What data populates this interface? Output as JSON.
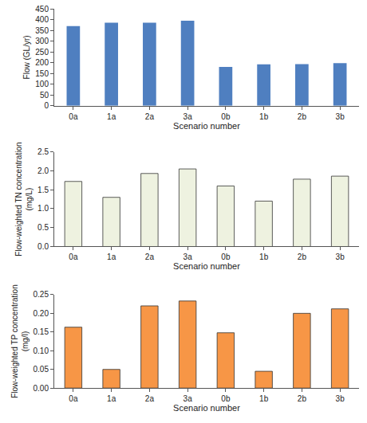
{
  "chart_data": [
    {
      "type": "bar",
      "x_label": "Scenario number",
      "y_label": "Flow (GL/yr)",
      "categories": [
        "0a",
        "1a",
        "2a",
        "3a",
        "0b",
        "1b",
        "2b",
        "3b"
      ],
      "values": [
        370,
        385,
        385,
        395,
        180,
        192,
        193,
        198
      ],
      "color": "#4f7fc0",
      "ylim": [
        0,
        450
      ],
      "yticks": [
        0,
        50,
        100,
        150,
        200,
        250,
        300,
        350,
        400,
        450
      ],
      "grid": false
    },
    {
      "type": "bar",
      "x_label": "Scenario number",
      "y_label": "Flow-weighted TN concentration\n(mg/L)",
      "categories": [
        "0a",
        "1a",
        "2a",
        "3a",
        "0b",
        "1b",
        "2b",
        "3b"
      ],
      "values": [
        1.72,
        1.3,
        1.93,
        2.05,
        1.6,
        1.2,
        1.78,
        1.86
      ],
      "color": "#eef2e0",
      "ylim": [
        0,
        2.5
      ],
      "yticks": [
        {
          "value": 0,
          "label": "0.0"
        },
        {
          "value": 0.5,
          "label": "0.5"
        },
        {
          "value": 1,
          "label": "1.0"
        },
        {
          "value": 1.5,
          "label": "1.5"
        },
        {
          "value": 2,
          "label": "2.0"
        },
        {
          "value": 2.5,
          "label": "2.5"
        }
      ],
      "grid": false
    },
    {
      "type": "bar",
      "x_label": "Scenario number",
      "y_label": "Flow-weighted TP concentration\n(mg/l)",
      "categories": [
        "0a",
        "1a",
        "2a",
        "3a",
        "0b",
        "1b",
        "2b",
        "3b"
      ],
      "values": [
        0.163,
        0.05,
        0.22,
        0.233,
        0.148,
        0.045,
        0.2,
        0.212
      ],
      "color": "#f79646",
      "ylim": [
        0,
        0.25
      ],
      "yticks": [
        {
          "value": 0,
          "label": "0.00"
        },
        {
          "value": 0.05,
          "label": "0.05"
        },
        {
          "value": 0.1,
          "label": "0.10"
        },
        {
          "value": 0.15,
          "label": "0.15"
        },
        {
          "value": 0.2,
          "label": "0.20"
        },
        {
          "value": 0.25,
          "label": "0.25"
        }
      ],
      "grid": false
    }
  ]
}
